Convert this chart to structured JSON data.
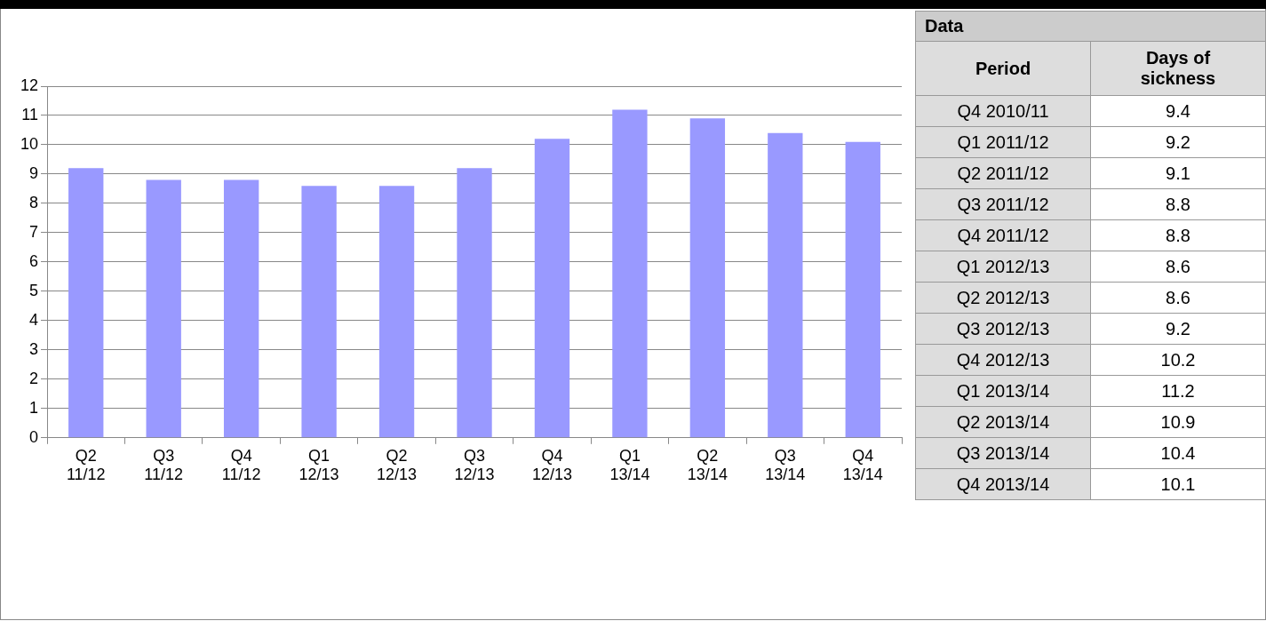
{
  "chart_data": [
    {
      "type": "bar",
      "categories": [
        "Q2 11/12",
        "Q3 11/12",
        "Q4 11/12",
        "Q1 12/13",
        "Q2 12/13",
        "Q3 12/13",
        "Q4 12/13",
        "Q1 13/14",
        "Q2 13/14",
        "Q3 13/14",
        "Q4 13/14"
      ],
      "values": [
        9.2,
        8.8,
        8.8,
        8.6,
        8.6,
        9.2,
        10.2,
        11.2,
        10.9,
        10.4,
        10.1
      ],
      "color": "#9999ff",
      "ylim": [
        0,
        12
      ],
      "yticks": [
        0,
        1,
        2,
        3,
        4,
        5,
        6,
        7,
        8,
        9,
        10,
        11,
        12
      ],
      "grid": "y",
      "legend": false
    },
    {
      "type": "other",
      "title": "Data",
      "xlabel": "Period",
      "ylabel": "Days of sickness",
      "categories": [
        "Q4 2010/11",
        "Q1 2011/12",
        "Q2 2011/12",
        "Q3 2011/12",
        "Q4 2011/12",
        "Q1 2012/13",
        "Q2 2012/13",
        "Q3 2012/13",
        "Q4 2012/13",
        "Q1 2013/14",
        "Q2 2013/14",
        "Q3 2013/14",
        "Q4 2013/14"
      ],
      "values": [
        9.4,
        9.2,
        9.1,
        8.8,
        8.8,
        8.6,
        8.6,
        9.2,
        10.2,
        11.2,
        10.9,
        10.4,
        10.1
      ],
      "data_labels": true
    }
  ]
}
